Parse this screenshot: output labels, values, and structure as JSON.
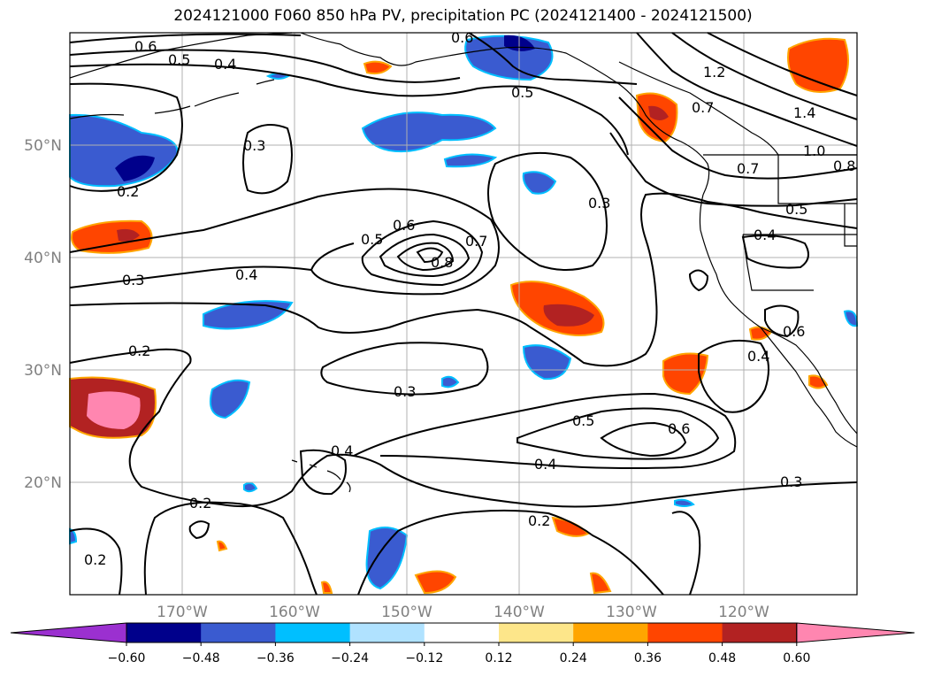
{
  "title": "2024121000 F060 850 hPa PV, precipitation PC (2024121400 - 2024121500)",
  "map": {
    "lon_labels": [
      "170°W",
      "160°W",
      "150°W",
      "140°W",
      "130°W",
      "120°W"
    ],
    "lat_labels": [
      "50°N",
      "40°N",
      "30°N",
      "20°N"
    ],
    "extent": {
      "lon": [
        -180,
        -110
      ],
      "lat": [
        10,
        60
      ]
    },
    "projection": "PlateCarree"
  },
  "contour_labels": [
    "0.6",
    "0.5",
    "0.4",
    "0.3",
    "0.2",
    "0.5",
    "0.6",
    "1.2",
    "0.7",
    "1.4",
    "1.0",
    "0.8",
    "0.7",
    "0.5",
    "0.4",
    "0.3",
    "0.5",
    "0.6",
    "0.7",
    "0.8",
    "0.4",
    "0.3",
    "0.2",
    "0.3",
    "0.6",
    "0.4",
    "0.5",
    "0.6",
    "0.4",
    "0.4",
    "0.3",
    "0.2",
    "0.2",
    "0.2"
  ],
  "colorbar": {
    "ticks": [
      "−0.60",
      "−0.48",
      "−0.36",
      "−0.24",
      "−0.12",
      "0.12",
      "0.24",
      "0.36",
      "0.48",
      "0.60"
    ],
    "colors": [
      "#9b30d0",
      "#00008b",
      "#3a5bd0",
      "#00bfff",
      "#b0e2ff",
      "#ffffff",
      "#fde68a",
      "#ffa500",
      "#ff4500",
      "#b22222",
      "#ff86b0"
    ]
  },
  "chart_data": {
    "type": "heatmap",
    "title": "2024121000 F060 850 hPa PV, precipitation PC (2024121400 - 2024121500)",
    "variables": {
      "contours": "850 hPa PV",
      "shading": "precipitation PC"
    },
    "contour_levels": [
      0.2,
      0.3,
      0.4,
      0.5,
      0.6,
      0.7,
      0.8,
      1.0,
      1.2,
      1.4
    ],
    "shading_levels": [
      -0.6,
      -0.48,
      -0.36,
      -0.24,
      -0.12,
      0.12,
      0.24,
      0.36,
      0.48,
      0.6
    ],
    "xlim": [
      -180,
      -110
    ],
    "ylim": [
      10,
      60
    ],
    "grid": true,
    "colorbar_placement": "bottom"
  }
}
